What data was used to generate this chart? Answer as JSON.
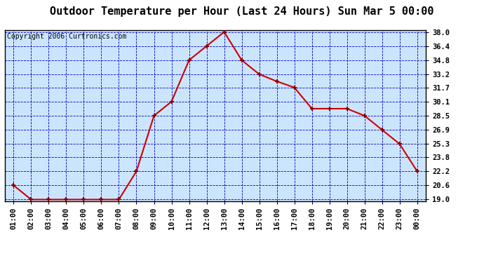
{
  "title": "Outdoor Temperature per Hour (Last 24 Hours) Sun Mar 5 00:00",
  "copyright": "Copyright 2006 Curtronics.com",
  "x_labels": [
    "01:00",
    "02:00",
    "03:00",
    "04:00",
    "05:00",
    "06:00",
    "07:00",
    "08:00",
    "09:00",
    "10:00",
    "11:00",
    "12:00",
    "13:00",
    "14:00",
    "15:00",
    "16:00",
    "17:00",
    "18:00",
    "19:00",
    "20:00",
    "21:00",
    "22:00",
    "23:00",
    "00:00"
  ],
  "y_values": [
    20.6,
    19.0,
    19.0,
    19.0,
    19.0,
    19.0,
    19.0,
    22.2,
    28.5,
    30.1,
    34.8,
    36.4,
    38.0,
    34.8,
    33.2,
    32.4,
    31.7,
    29.3,
    29.3,
    29.3,
    28.5,
    26.9,
    25.3,
    22.2
  ],
  "y_ticks": [
    19.0,
    20.6,
    22.2,
    23.8,
    25.3,
    26.9,
    28.5,
    30.1,
    31.7,
    33.2,
    34.8,
    36.4,
    38.0
  ],
  "y_min": 19.0,
  "y_max": 38.0,
  "line_color": "#cc0000",
  "marker_color": "#880000",
  "grid_color": "#0000bb",
  "bg_color": "#cce5ff",
  "outer_bg": "#ffffff",
  "title_fontsize": 11,
  "copyright_fontsize": 7,
  "tick_fontsize": 7.5
}
